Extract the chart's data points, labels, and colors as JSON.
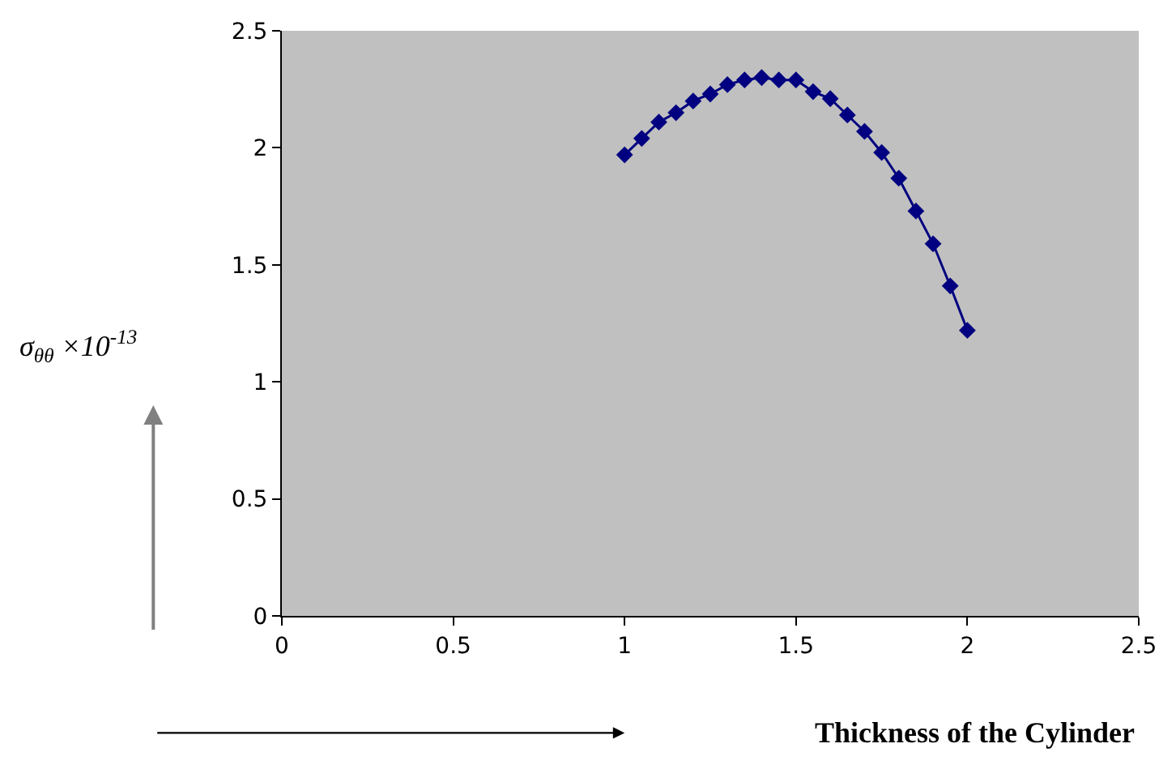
{
  "chart_data": {
    "type": "line",
    "xlabel": "Thickness of the Cylinder",
    "ylabel": "σ$_{θθ}$ ×10$^{-13}$",
    "x": [
      1.0,
      1.05,
      1.1,
      1.15,
      1.2,
      1.25,
      1.3,
      1.35,
      1.4,
      1.45,
      1.5,
      1.55,
      1.6,
      1.65,
      1.7,
      1.75,
      1.8,
      1.85,
      1.9,
      1.95,
      2.0
    ],
    "series": [
      {
        "color": "#000080",
        "values": [
          1.97,
          2.04,
          2.11,
          2.15,
          2.2,
          2.23,
          2.27,
          2.29,
          2.3,
          2.29,
          2.29,
          2.24,
          2.21,
          2.14,
          2.07,
          1.98,
          1.87,
          1.73,
          1.59,
          1.41,
          1.22
        ]
      }
    ],
    "xlim": [
      0,
      2.5
    ],
    "xticks": [
      0,
      0.5,
      1,
      1.5,
      2,
      2.5
    ],
    "ylim": [
      0,
      2.5
    ],
    "yticks": [
      0,
      0.5,
      1,
      1.5,
      2,
      2.5
    ],
    "grid": false,
    "legend": false,
    "marker": "diamond",
    "line_style": "solid"
  }
}
